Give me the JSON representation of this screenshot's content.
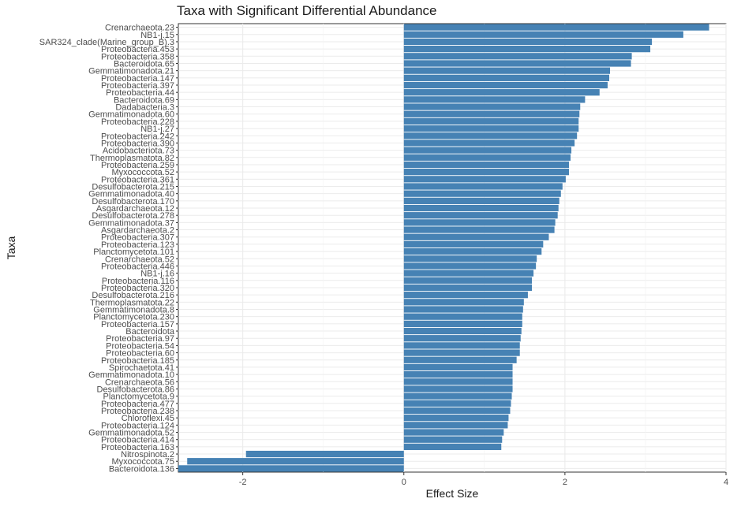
{
  "chart_data": {
    "type": "bar",
    "orientation": "horizontal",
    "title": "Taxa with Significant Differential Abundance",
    "xlabel": "Effect Size",
    "ylabel": "Taxa",
    "xlim": [
      -2.8,
      4.0
    ],
    "xticks": [
      -2,
      0,
      2,
      4
    ],
    "xtick_labels": [
      "-2",
      "0",
      "2",
      "4"
    ],
    "grid": true,
    "bar_color": "#4682B4",
    "categories": [
      "Crenarchaeota.23",
      "NB1-j.15",
      "SAR324_clade(Marine_group_B).3",
      "Proteobacteria.453",
      "Proteobacteria.358",
      "Bacteroidota.65",
      "Gemmatimonadota.21",
      "Proteobacteria.147",
      "Proteobacteria.397",
      "Proteobacteria.44",
      "Bacteroidota.69",
      "Dadabacteria.3",
      "Gemmatimonadota.60",
      "Proteobacteria.228",
      "NB1-j.27",
      "Proteobacteria.242",
      "Proteobacteria.390",
      "Acidobacteriota.73",
      "Thermoplasmatota.82",
      "Proteobacteria.259",
      "Myxococcota.52",
      "Proteobacteria.361",
      "Desulfobacterota.215",
      "Gemmatimonadota.40",
      "Desulfobacterota.170",
      "Asgardarchaeota.12",
      "Desulfobacterota.278",
      "Gemmatimonadota.37",
      "Asgardarchaeota.2",
      "Proteobacteria.307",
      "Proteobacteria.123",
      "Planctomycetota.101",
      "Crenarchaeota.52",
      "Proteobacteria.446",
      "NB1-j.16",
      "Proteobacteria.116",
      "Proteobacteria.320",
      "Desulfobacterota.216",
      "Thermoplasmatota.22",
      "Gemmatimonadota.8",
      "Planctomycetota.230",
      "Proteobacteria.157",
      "Bacteroidota",
      "Proteobacteria.97",
      "Proteobacteria.54",
      "Proteobacteria.60",
      "Proteobacteria.185",
      "Spirochaetota.41",
      "Gemmatimonadota.10",
      "Crenarchaeota.56",
      "Desulfobacterota.86",
      "Planctomycetota.9",
      "Proteobacteria.477",
      "Proteobacteria.238",
      "Chloroflexi.45",
      "Proteobacteria.124",
      "Gemmatimonadota.52",
      "Proteobacteria.414",
      "Proteobacteria.163",
      "Nitrospinota.2",
      "Myxococcota.75",
      "Bacteroidota.136"
    ],
    "values": [
      3.79,
      3.47,
      3.08,
      3.06,
      2.83,
      2.82,
      2.56,
      2.55,
      2.53,
      2.43,
      2.25,
      2.19,
      2.18,
      2.17,
      2.17,
      2.15,
      2.12,
      2.08,
      2.07,
      2.05,
      2.05,
      2.01,
      1.97,
      1.95,
      1.93,
      1.92,
      1.91,
      1.88,
      1.87,
      1.8,
      1.73,
      1.71,
      1.65,
      1.64,
      1.61,
      1.59,
      1.59,
      1.54,
      1.49,
      1.48,
      1.47,
      1.47,
      1.46,
      1.45,
      1.44,
      1.44,
      1.4,
      1.35,
      1.35,
      1.35,
      1.35,
      1.34,
      1.33,
      1.32,
      1.3,
      1.29,
      1.24,
      1.22,
      1.21,
      -1.96,
      -2.69,
      -2.8
    ]
  }
}
